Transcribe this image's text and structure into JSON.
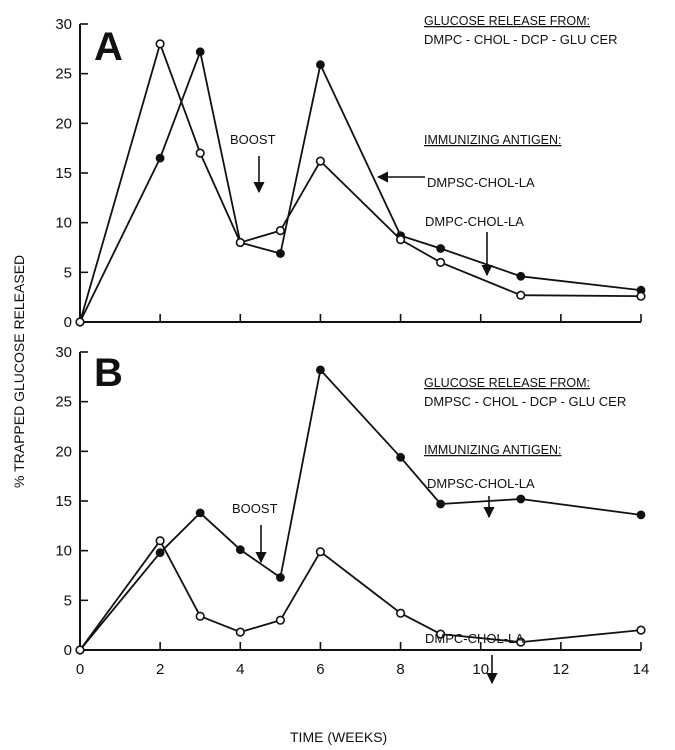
{
  "chart_data": [
    {
      "panel": "A",
      "type": "line",
      "x": [
        0,
        2,
        3,
        4,
        5,
        6,
        8,
        9,
        11,
        14
      ],
      "ylim": [
        0,
        30
      ],
      "xlim": [
        0,
        14
      ],
      "series": [
        {
          "name": "DMPSC-CHOL-LA",
          "marker": "filled",
          "values": [
            0,
            16.5,
            27.2,
            8,
            6.9,
            25.9,
            8.7,
            7.4,
            4.6,
            3.2
          ]
        },
        {
          "name": "DMPC-CHOL-LA",
          "marker": "open",
          "values": [
            0,
            28,
            17,
            8,
            9.2,
            16.2,
            8.3,
            6,
            2.7,
            2.6
          ]
        }
      ],
      "header1": "GLUCOSE RELEASE FROM:",
      "header2": "DMPC - CHOL - DCP - GLU CER",
      "header3": "IMMUNIZING ANTIGEN:",
      "boost": "BOOST"
    },
    {
      "panel": "B",
      "type": "line",
      "x": [
        0,
        2,
        3,
        4,
        5,
        6,
        8,
        9,
        11,
        14
      ],
      "ylim": [
        0,
        30
      ],
      "xlim": [
        0,
        14
      ],
      "series": [
        {
          "name": "DMPSC-CHOL-LA",
          "marker": "filled",
          "values": [
            0,
            9.8,
            13.8,
            10.1,
            7.3,
            28.2,
            19.4,
            14.7,
            15.2,
            13.6
          ]
        },
        {
          "name": "DMPC-CHOL-LA",
          "marker": "open",
          "values": [
            0,
            11,
            3.4,
            1.8,
            3,
            9.9,
            3.7,
            1.6,
            0.8,
            2
          ]
        }
      ],
      "header1": "GLUCOSE RELEASE FROM:",
      "header2": "DMPSC - CHOL - DCP - GLU CER",
      "header3": "IMMUNIZING ANTIGEN:",
      "boost": "BOOST"
    }
  ],
  "xticks": [
    "0",
    "2",
    "4",
    "6",
    "8",
    "10",
    "12",
    "14"
  ],
  "yticks": [
    "0",
    "5",
    "10",
    "15",
    "20",
    "25",
    "30"
  ],
  "ylabel": "% TRAPPED GLUCOSE RELEASED",
  "xlabel": "TIME (WEEKS)"
}
